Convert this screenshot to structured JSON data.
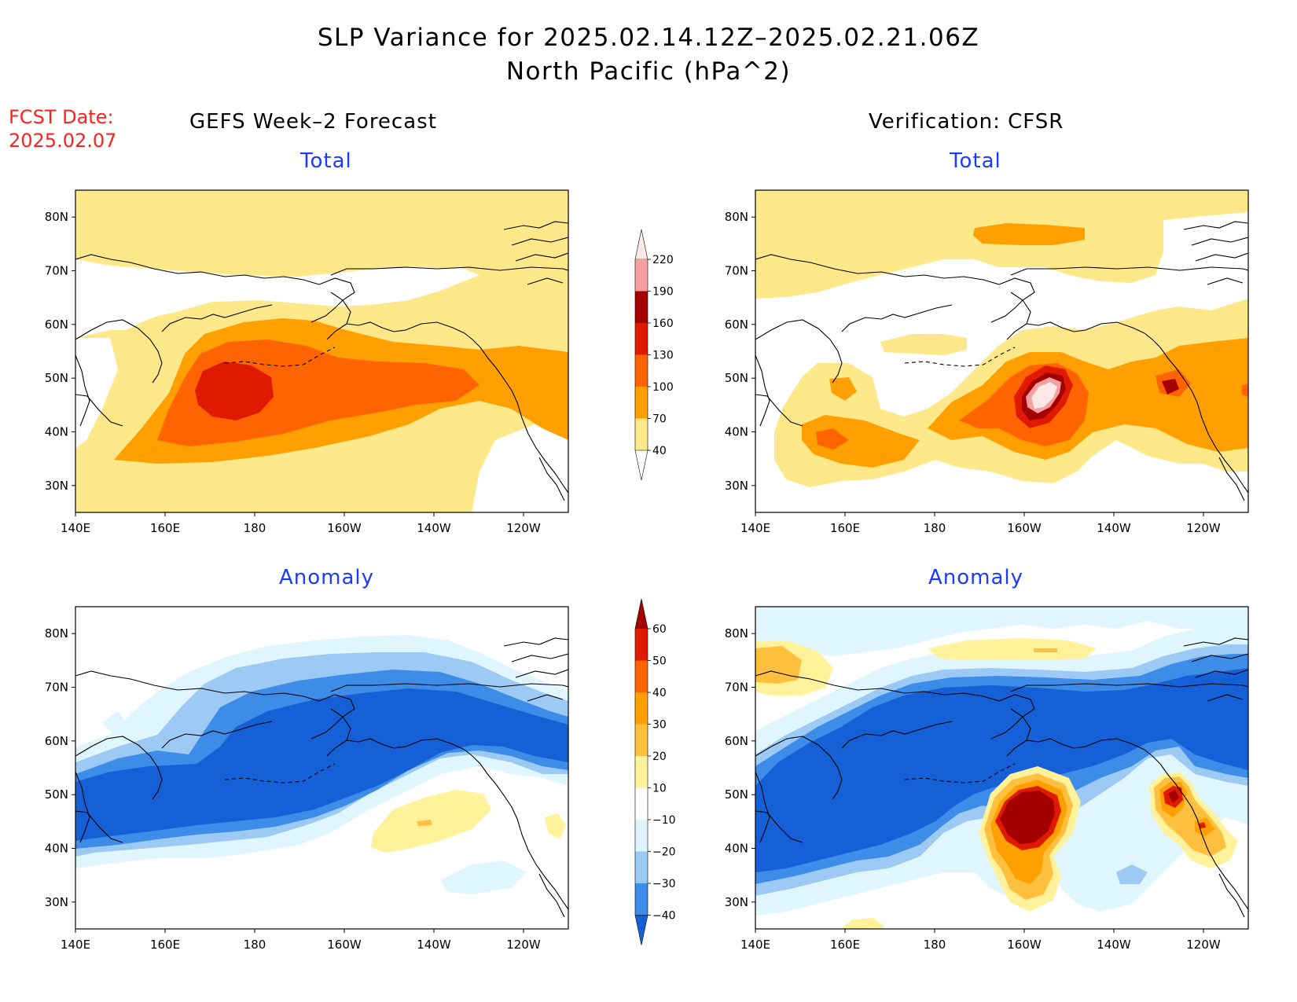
{
  "title": {
    "line1": "SLP Variance for 2025.02.14.12Z–2025.02.21.06Z",
    "line2": "North Pacific (hPa^2)"
  },
  "fcst_date": {
    "label": "FCST Date:",
    "value": "2025.02.07"
  },
  "columns": {
    "left": "GEFS Week–2 Forecast",
    "right": "Verification: CFSR"
  },
  "panels": {
    "top_left": {
      "subtitle": "Total"
    },
    "top_right": {
      "subtitle": "Total"
    },
    "bottom_left": {
      "subtitle": "Anomaly"
    },
    "bottom_right": {
      "subtitle": "Anomaly"
    }
  },
  "axes": {
    "lon_ticks": [
      "140E",
      "160E",
      "180",
      "160W",
      "140W",
      "120W"
    ],
    "lat_ticks": [
      "30N",
      "40N",
      "50N",
      "60N",
      "70N",
      "80N"
    ]
  },
  "colorbar_total": {
    "levels": [
      "40",
      "70",
      "100",
      "130",
      "160",
      "190",
      "220"
    ],
    "colors": [
      "#ffe88a",
      "#ffa000",
      "#ff6400",
      "#e01a00",
      "#a50000",
      "#f4a0a0",
      "#fde8e8"
    ]
  },
  "colorbar_anomaly": {
    "levels": [
      "−40",
      "−30",
      "−20",
      "−10",
      "10",
      "20",
      "30",
      "40",
      "50",
      "60"
    ],
    "colors": [
      "#1560d6",
      "#3c8ce8",
      "#9ccaf5",
      "#dff6ff",
      "#ffffff",
      "#fff29a",
      "#ffc040",
      "#ffa000",
      "#ff6400",
      "#e01a00",
      "#a50000"
    ]
  },
  "colors": {
    "land_line": "#000000",
    "title_red": "#ff2020",
    "subtitle_blue": "#1a3cff"
  }
}
